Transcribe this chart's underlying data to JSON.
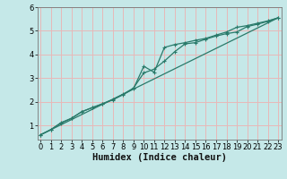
{
  "xlabel": "Humidex (Indice chaleur)",
  "bg_color": "#c5e8e8",
  "grid_color": "#e8b8b8",
  "line_color": "#2a7a6a",
  "xlim": [
    -0.3,
    23.3
  ],
  "ylim": [
    0.4,
    6.0
  ],
  "yticks": [
    1,
    2,
    3,
    4,
    5,
    6
  ],
  "xticks": [
    0,
    1,
    2,
    3,
    4,
    5,
    6,
    7,
    8,
    9,
    10,
    11,
    12,
    13,
    14,
    15,
    16,
    17,
    18,
    19,
    20,
    21,
    22,
    23
  ],
  "line1_x": [
    0,
    1,
    2,
    3,
    4,
    5,
    6,
    7,
    8,
    9,
    10,
    11,
    12,
    13,
    14,
    15,
    16,
    17,
    18,
    19,
    20,
    21,
    22,
    23
  ],
  "line1_y": [
    0.6,
    0.82,
    1.1,
    1.3,
    1.58,
    1.75,
    1.9,
    2.08,
    2.3,
    2.55,
    3.5,
    3.25,
    4.3,
    4.42,
    4.5,
    4.6,
    4.68,
    4.82,
    4.95,
    5.15,
    5.22,
    5.32,
    5.42,
    5.55
  ],
  "line2_x": [
    0,
    1,
    2,
    3,
    4,
    5,
    6,
    7,
    8,
    9,
    10,
    11,
    12,
    13,
    14,
    15,
    16,
    17,
    18,
    19,
    20,
    21,
    22,
    23
  ],
  "line2_y": [
    0.6,
    0.82,
    1.12,
    1.3,
    1.58,
    1.75,
    1.92,
    2.1,
    2.32,
    2.58,
    3.22,
    3.38,
    3.72,
    4.12,
    4.45,
    4.5,
    4.65,
    4.78,
    4.88,
    4.95,
    5.18,
    5.28,
    5.4,
    5.55
  ],
  "line3_x": [
    0,
    23
  ],
  "line3_y": [
    0.6,
    5.55
  ],
  "marker_size": 3.5,
  "linewidth": 0.9,
  "font_size_xlabel": 7.5,
  "font_size_tick": 6.0
}
